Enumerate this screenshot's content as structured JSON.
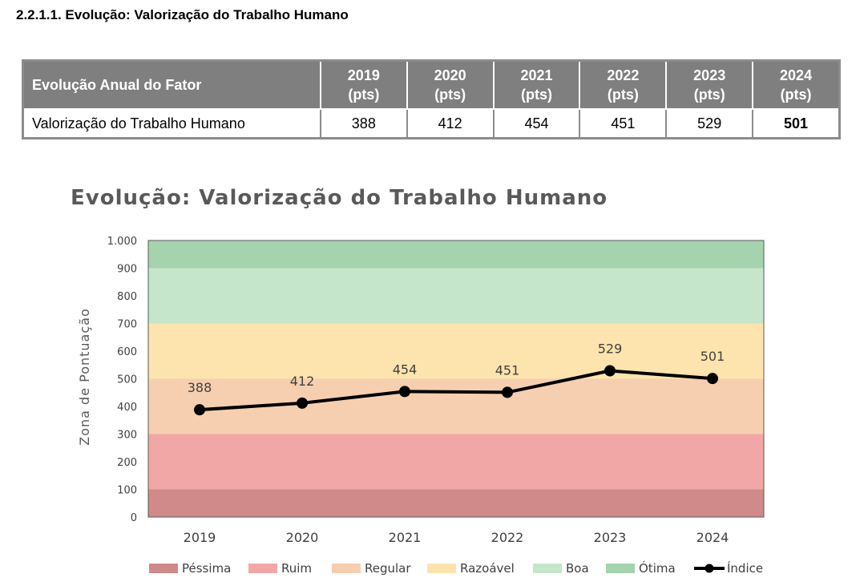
{
  "section_heading": "2.2.1.1. Evolução: Valorização do Trabalho Humano",
  "table": {
    "header_label": "Evolução Anual do Fator",
    "years": [
      {
        "year": "2019",
        "unit": "(pts)"
      },
      {
        "year": "2020",
        "unit": "(pts)"
      },
      {
        "year": "2021",
        "unit": "(pts)"
      },
      {
        "year": "2022",
        "unit": "(pts)"
      },
      {
        "year": "2023",
        "unit": "(pts)"
      },
      {
        "year": "2024",
        "unit": "(pts)"
      }
    ],
    "row_label": "Valorização do Trabalho Humano",
    "values": [
      "388",
      "412",
      "454",
      "451",
      "529",
      "501"
    ]
  },
  "chart_data": {
    "type": "line",
    "title": "Evolução: Valorização do Trabalho Humano",
    "ylabel": "Zona de Pontuação",
    "xlabel": "",
    "categories": [
      "2019",
      "2020",
      "2021",
      "2022",
      "2023",
      "2024"
    ],
    "series": [
      {
        "name": "Índice",
        "values": [
          388,
          412,
          454,
          451,
          529,
          501
        ],
        "color": "#000000"
      }
    ],
    "data_labels": [
      "388",
      "412",
      "454",
      "451",
      "529",
      "501"
    ],
    "ylim": [
      0,
      1000
    ],
    "yticks": [
      {
        "value": 0,
        "label": "0"
      },
      {
        "value": 100,
        "label": "100"
      },
      {
        "value": 200,
        "label": "200"
      },
      {
        "value": 300,
        "label": "300"
      },
      {
        "value": 400,
        "label": "400"
      },
      {
        "value": 500,
        "label": "500"
      },
      {
        "value": 600,
        "label": "600"
      },
      {
        "value": 700,
        "label": "700"
      },
      {
        "value": 800,
        "label": "800"
      },
      {
        "value": 900,
        "label": "900"
      },
      {
        "value": 1000,
        "label": "1.000"
      }
    ],
    "bands": [
      {
        "name": "Péssima",
        "from": 0,
        "to": 100,
        "color": "#d08a8a"
      },
      {
        "name": "Ruim",
        "from": 100,
        "to": 300,
        "color": "#f2a7a7"
      },
      {
        "name": "Regular",
        "from": 300,
        "to": 500,
        "color": "#f5cfb0"
      },
      {
        "name": "Razoável",
        "from": 500,
        "to": 700,
        "color": "#fde3ad"
      },
      {
        "name": "Boa",
        "from": 700,
        "to": 900,
        "color": "#c6e6cc"
      },
      {
        "name": "Ótima",
        "from": 900,
        "to": 1000,
        "color": "#a5d3ae"
      }
    ],
    "legend_position": "bottom",
    "grid": false
  }
}
